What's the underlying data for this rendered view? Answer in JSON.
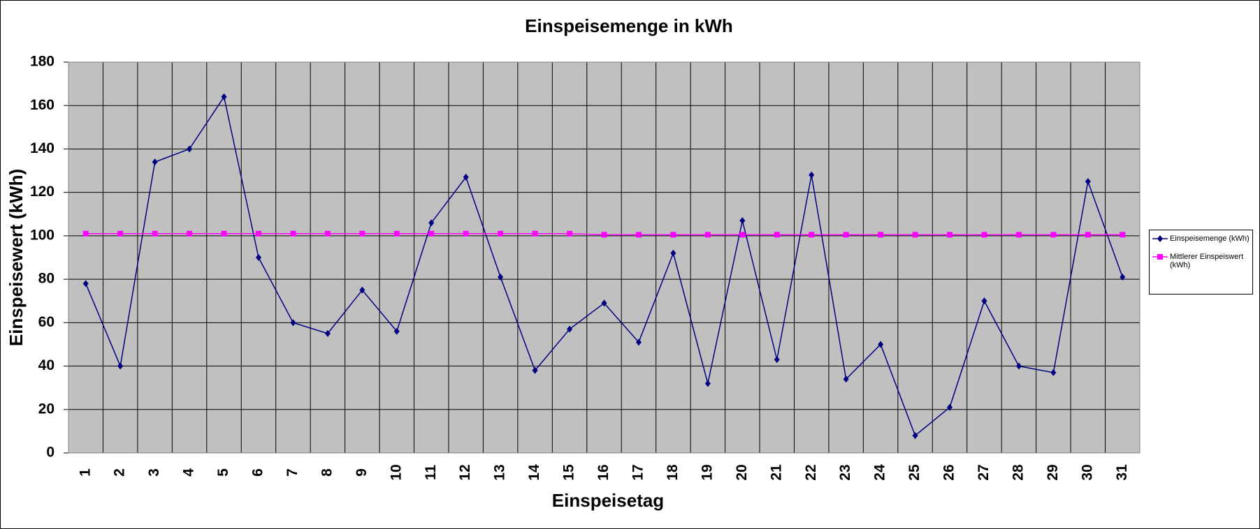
{
  "chart_data": {
    "type": "line",
    "title": "Einspeisemenge in kWh",
    "x_label": "Einspeisetag",
    "y_label": "Einspeisewert  (kWh)",
    "categories": [
      1,
      2,
      3,
      4,
      5,
      6,
      7,
      8,
      9,
      10,
      11,
      12,
      13,
      14,
      15,
      16,
      17,
      18,
      19,
      20,
      21,
      22,
      23,
      24,
      25,
      26,
      27,
      28,
      29,
      30,
      31
    ],
    "series": [
      {
        "name": "Einspeisemenge (kWh)",
        "color": "#000080",
        "marker": "diamond",
        "values": [
          78,
          40,
          134,
          140,
          164,
          90,
          60,
          55,
          75,
          56,
          106,
          127,
          81,
          38,
          57,
          69,
          51,
          92,
          32,
          107,
          43,
          128,
          34,
          50,
          8,
          21,
          70,
          40,
          37,
          125,
          81
        ]
      },
      {
        "name": "Mittlerer Einspeiswert (kWh)",
        "color": "#ff00ff",
        "marker": "square",
        "values": [
          101,
          101,
          101,
          101,
          101,
          101,
          101,
          101,
          101,
          101,
          101,
          101,
          101,
          101,
          101,
          100.5,
          100.5,
          100.5,
          100.5,
          100.5,
          100.5,
          100.5,
          100.5,
          100.5,
          100.5,
          100.5,
          100.5,
          100.5,
          100.5,
          100.5,
          100.5
        ]
      }
    ],
    "ylim": [
      0,
      180
    ],
    "yticks": [
      0,
      20,
      40,
      60,
      80,
      100,
      120,
      140,
      160,
      180
    ],
    "grid": true,
    "legend": "right"
  }
}
